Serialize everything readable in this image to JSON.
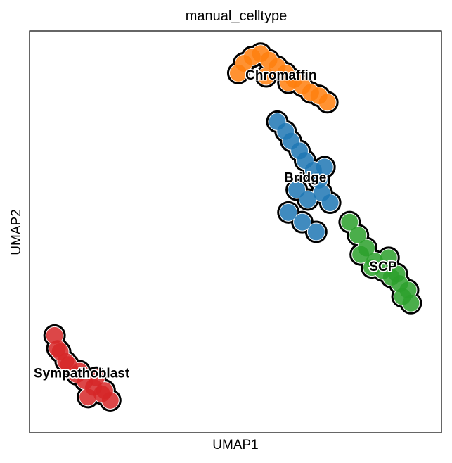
{
  "chart_data": {
    "type": "scatter",
    "title": "manual_celltype",
    "xlabel": "UMAP1",
    "ylabel": "UMAP2",
    "grid": false,
    "axis_ticks": false,
    "legend": "on data",
    "series": [
      {
        "name": "Chromaffin",
        "color": "#ff7f0e",
        "x": [
          -0.6,
          -0.3,
          0.0,
          0.3,
          0.6,
          0.9,
          1.2,
          1.5,
          1.8,
          2.1,
          2.4,
          -0.8,
          0.2,
          1.0
        ],
        "y": [
          9.2,
          9.4,
          9.5,
          9.3,
          9.1,
          8.9,
          8.7,
          8.5,
          8.3,
          8.2,
          8.0,
          8.9,
          8.8,
          8.6
        ]
      },
      {
        "name": "Bridge",
        "color": "#1f77b4",
        "x": [
          0.6,
          0.9,
          1.1,
          1.4,
          1.6,
          1.9,
          2.1,
          1.3,
          1.7,
          2.2,
          2.5,
          1.0,
          1.5,
          2.0,
          2.3
        ],
        "y": [
          7.4,
          7.1,
          6.8,
          6.5,
          6.2,
          5.9,
          5.6,
          5.3,
          5.0,
          5.2,
          4.9,
          4.6,
          4.3,
          4.0,
          6.0
        ]
      },
      {
        "name": "SCP",
        "color": "#2ca02c",
        "x": [
          3.2,
          3.5,
          3.8,
          4.1,
          4.4,
          4.7,
          5.0,
          5.3,
          4.0,
          4.6,
          5.1,
          3.6,
          4.9,
          5.4
        ],
        "y": [
          4.3,
          3.9,
          3.5,
          3.1,
          2.8,
          2.6,
          2.4,
          2.2,
          2.9,
          3.2,
          2.0,
          3.3,
          2.7,
          1.8
        ]
      },
      {
        "name": "Sympathoblast",
        "color": "#d62728",
        "x": [
          -7.4,
          -7.2,
          -6.9,
          -6.6,
          -6.3,
          -6.0,
          -5.7,
          -5.4,
          -7.0,
          -6.5,
          -5.9,
          -5.6,
          -6.2,
          -7.3
        ],
        "y": [
          0.8,
          0.3,
          -0.1,
          -0.4,
          -0.6,
          -0.8,
          -1.0,
          -1.2,
          0.0,
          -0.3,
          -0.5,
          -0.9,
          -1.1,
          0.4
        ]
      }
    ]
  }
}
